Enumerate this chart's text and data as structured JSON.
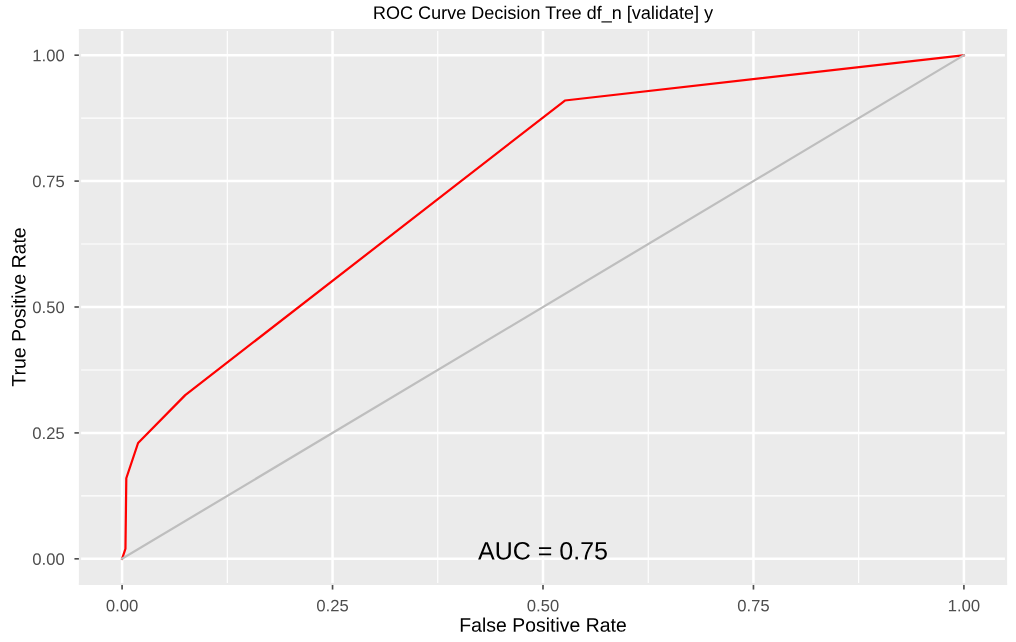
{
  "chart_data": {
    "type": "line",
    "title": "ROC Curve Decision Tree df_n [validate] y",
    "xlabel": "False Positive Rate",
    "ylabel": "True Positive Rate",
    "annotations": [
      "AUC = 0.75"
    ],
    "series": [
      {
        "color": "#ff0000",
        "x": [
          0,
          0.004,
          0.005,
          0.019,
          0.075,
          0.526,
          1
        ],
        "values": [
          0,
          0.02,
          0.16,
          0.23,
          0.325,
          0.91,
          1
        ]
      },
      {
        "color": "#bebebe",
        "x": [
          0,
          1
        ],
        "values": [
          0,
          1
        ]
      }
    ],
    "xlim": [
      -0.05,
      1.05
    ],
    "ylim": [
      -0.05,
      1.05
    ],
    "xticks": [
      {
        "value": 0,
        "label": "0.00"
      },
      {
        "value": 0.25,
        "label": "0.25"
      },
      {
        "value": 0.5,
        "label": "0.50"
      },
      {
        "value": 0.75,
        "label": "0.75"
      },
      {
        "value": 1,
        "label": "1.00"
      }
    ],
    "yticks": [
      {
        "value": 0,
        "label": "0.00"
      },
      {
        "value": 0.25,
        "label": "0.25"
      },
      {
        "value": 0.5,
        "label": "0.50"
      },
      {
        "value": 0.75,
        "label": "0.75"
      },
      {
        "value": 1,
        "label": "1.00"
      }
    ],
    "grid": true
  }
}
